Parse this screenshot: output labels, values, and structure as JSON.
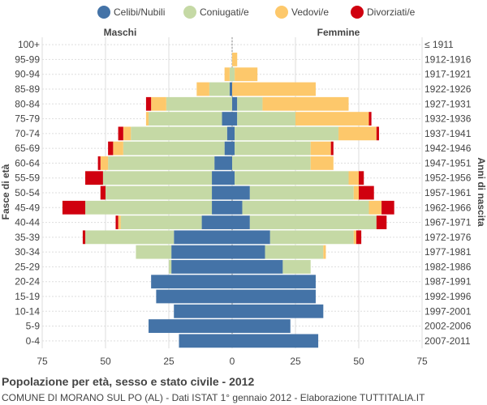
{
  "chart_data": {
    "type": "bar",
    "orientation": "horizontal-pyramid",
    "title": "Popolazione per età, sesso e stato civile - 2012",
    "subtitle": "COMUNE DI MORANO SUL PO (AL) - Dati ISTAT 1° gennaio 2012 - Elaborazione TUTTITALIA.IT",
    "left_header": "Maschi",
    "right_header": "Femmine",
    "ylabel_left": "Fasce di età",
    "ylabel_right": "Anni di nascita",
    "xlim": [
      -75,
      75
    ],
    "x_ticks": [
      -75,
      -50,
      -25,
      0,
      25,
      50,
      75
    ],
    "x_tick_labels": [
      "75",
      "50",
      "25",
      "0",
      "25",
      "50",
      "75"
    ],
    "legend": [
      {
        "name": "Celibi/Nubili",
        "color": "#4473a7"
      },
      {
        "name": "Coniugati/e",
        "color": "#c5d9a5"
      },
      {
        "name": "Vedovi/e",
        "color": "#fdc86b"
      },
      {
        "name": "Divorziati/e",
        "color": "#d0000f"
      }
    ],
    "age_groups": [
      "100+",
      "95-99",
      "90-94",
      "85-89",
      "80-84",
      "75-79",
      "70-74",
      "65-69",
      "60-64",
      "55-59",
      "50-54",
      "45-49",
      "40-44",
      "35-39",
      "30-34",
      "25-29",
      "20-24",
      "15-19",
      "10-14",
      "5-9",
      "0-4"
    ],
    "birth_years": [
      "≤ 1911",
      "1912-1916",
      "1917-1921",
      "1922-1926",
      "1927-1931",
      "1932-1936",
      "1937-1941",
      "1942-1946",
      "1947-1951",
      "1952-1956",
      "1957-1961",
      "1962-1966",
      "1967-1971",
      "1972-1976",
      "1977-1981",
      "1982-1986",
      "1987-1991",
      "1992-1996",
      "1997-2001",
      "2002-2006",
      "2007-2011"
    ],
    "males": {
      "celibi": [
        0,
        0,
        0,
        1,
        0,
        4,
        2,
        3,
        7,
        8,
        8,
        8,
        12,
        23,
        24,
        24,
        32,
        30,
        23,
        33,
        21
      ],
      "coniugati": [
        0,
        0,
        1,
        8,
        26,
        29,
        38,
        40,
        42,
        43,
        42,
        50,
        32,
        35,
        14,
        1,
        0,
        0,
        0,
        0,
        0
      ],
      "vedovi": [
        0,
        0,
        2,
        5,
        6,
        1,
        3,
        4,
        3,
        0,
        0,
        0,
        1,
        0,
        0,
        0,
        0,
        0,
        0,
        0,
        0
      ],
      "divorziati": [
        0,
        0,
        0,
        0,
        2,
        0,
        2,
        2,
        1,
        7,
        2,
        9,
        1,
        1,
        0,
        0,
        0,
        0,
        0,
        0,
        0
      ]
    },
    "females": {
      "nubili": [
        0,
        0,
        0,
        0,
        2,
        2,
        1,
        1,
        0,
        1,
        7,
        4,
        7,
        15,
        13,
        20,
        33,
        33,
        36,
        23,
        34
      ],
      "coniugate": [
        0,
        0,
        1,
        0,
        10,
        23,
        41,
        30,
        31,
        45,
        41,
        50,
        50,
        33,
        23,
        11,
        0,
        0,
        0,
        0,
        0
      ],
      "vedove": [
        0,
        2,
        9,
        33,
        34,
        29,
        15,
        8,
        9,
        4,
        2,
        5,
        0,
        1,
        1,
        0,
        0,
        0,
        0,
        0,
        0
      ],
      "divorziate": [
        0,
        0,
        0,
        0,
        0,
        1,
        1,
        1,
        0,
        2,
        6,
        5,
        4,
        2,
        0,
        0,
        0,
        0,
        0,
        0,
        0
      ]
    }
  }
}
